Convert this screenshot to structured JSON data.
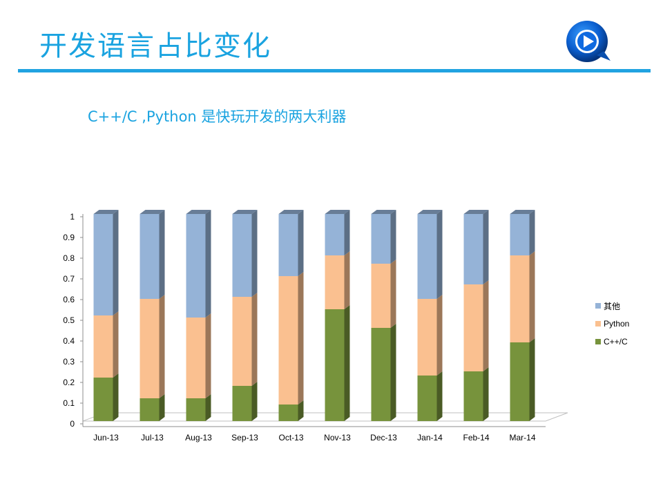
{
  "slide": {
    "title": "开发语言占比变化",
    "subtitle": "C++/C ,Python 是快玩开发的两大利器"
  },
  "chart_data": {
    "type": "bar",
    "stacked": true,
    "three_d": true,
    "categories": [
      "Jun-13",
      "Jul-13",
      "Aug-13",
      "Sep-13",
      "Oct-13",
      "Nov-13",
      "Dec-13",
      "Jan-14",
      "Feb-14",
      "Mar-14"
    ],
    "series": [
      {
        "name": "C++/C",
        "color": "#77933c",
        "values": [
          0.21,
          0.11,
          0.11,
          0.17,
          0.08,
          0.54,
          0.45,
          0.22,
          0.24,
          0.38
        ]
      },
      {
        "name": "Python",
        "color": "#fac090",
        "values": [
          0.3,
          0.48,
          0.39,
          0.43,
          0.62,
          0.26,
          0.31,
          0.37,
          0.42,
          0.42
        ]
      },
      {
        "name": "其他",
        "color": "#95b3d7",
        "values": [
          0.49,
          0.41,
          0.5,
          0.4,
          0.3,
          0.2,
          0.24,
          0.41,
          0.34,
          0.2
        ]
      }
    ],
    "y_ticks": [
      "0",
      "0.1",
      "0.2",
      "0.3",
      "0.4",
      "0.5",
      "0.6",
      "0.7",
      "0.8",
      "0.9",
      "1"
    ],
    "ylim": [
      0,
      1
    ],
    "grid": false,
    "legend_position": "right"
  }
}
